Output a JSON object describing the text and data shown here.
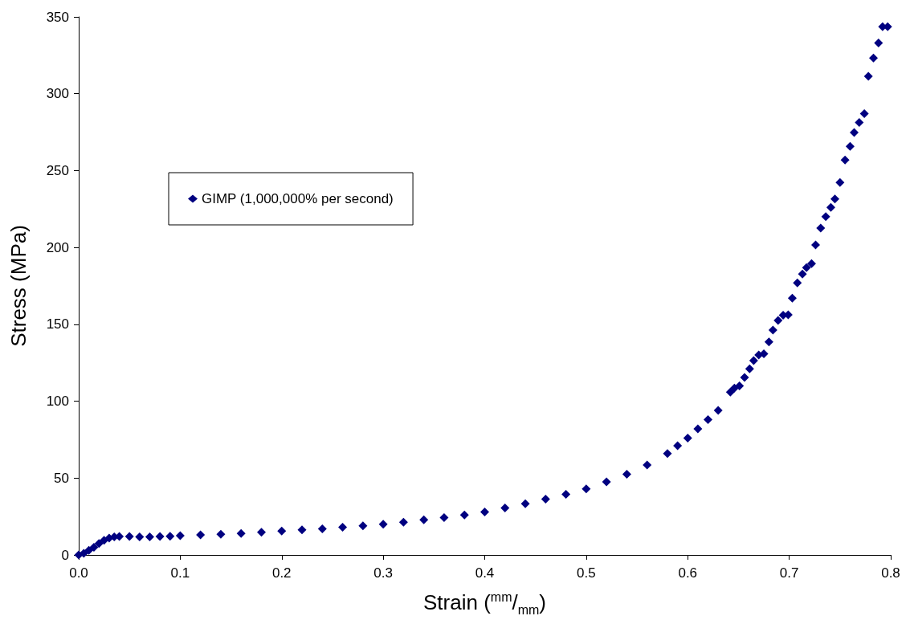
{
  "chart_data": {
    "type": "scatter",
    "xlabel": "Strain ($^{mm}$/$_{mm}$)",
    "ylabel": "Stress (MPa)",
    "xlim": [
      0,
      0.8
    ],
    "xticks": [
      {
        "value": 0,
        "label": "0.0"
      },
      0.1,
      0.2,
      0.3,
      0.4,
      0.5,
      0.6,
      0.7,
      0.8
    ],
    "ylim": [
      0,
      350
    ],
    "yticks": [
      0,
      50,
      100,
      150,
      200,
      250,
      300,
      350
    ],
    "grid": false,
    "legend": "top left",
    "marker": "diamond",
    "series": [
      {
        "name": "GIMP (1,000,000% per second)",
        "color": "#000080",
        "x": [
          0,
          0.005,
          0.01,
          0.015,
          0.02,
          0.025,
          0.03,
          0.035,
          0.04,
          0.05,
          0.06,
          0.07,
          0.08,
          0.09,
          0.1,
          0.12,
          0.14,
          0.16,
          0.18,
          0.2,
          0.22,
          0.24,
          0.26,
          0.28,
          0.3,
          0.32,
          0.34,
          0.36,
          0.38,
          0.4,
          0.42,
          0.44,
          0.46,
          0.48,
          0.5,
          0.52,
          0.54,
          0.56,
          0.58,
          0.59,
          0.6,
          0.61,
          0.62,
          0.63,
          0.642,
          0.646,
          0.651,
          0.656,
          0.661,
          0.665,
          0.67,
          0.675,
          0.68,
          0.684,
          0.689,
          0.694,
          0.699,
          0.703,
          0.708,
          0.713,
          0.717,
          0.722,
          0.726,
          0.731,
          0.736,
          0.741,
          0.745,
          0.75,
          0.755,
          0.76,
          0.764,
          0.769,
          0.774,
          0.778,
          0.783,
          0.788,
          0.792,
          0.797
        ],
        "values": [
          0,
          1,
          3,
          5,
          7.5,
          9.5,
          11,
          11.8,
          12,
          12,
          11.8,
          11.8,
          12,
          12.2,
          12.5,
          13,
          13.5,
          14,
          14.8,
          15.5,
          16.3,
          17,
          18,
          19,
          20,
          21.3,
          22.8,
          24.3,
          26,
          28,
          30.5,
          33.3,
          36.3,
          39.5,
          43,
          47.5,
          52.5,
          58.5,
          66,
          71,
          76,
          82,
          88,
          94,
          105.9,
          108.5,
          109.9,
          115.5,
          121,
          126.4,
          130.1,
          130.8,
          138.5,
          146.3,
          152.6,
          155.9,
          156.2,
          167,
          177,
          182.7,
          186.9,
          189.5,
          201.7,
          212.6,
          220.1,
          226.1,
          231.5,
          242.3,
          256.9,
          265.8,
          274.8,
          281.3,
          287,
          311.4,
          323.2,
          333,
          343.6,
          343.6
        ]
      }
    ]
  }
}
